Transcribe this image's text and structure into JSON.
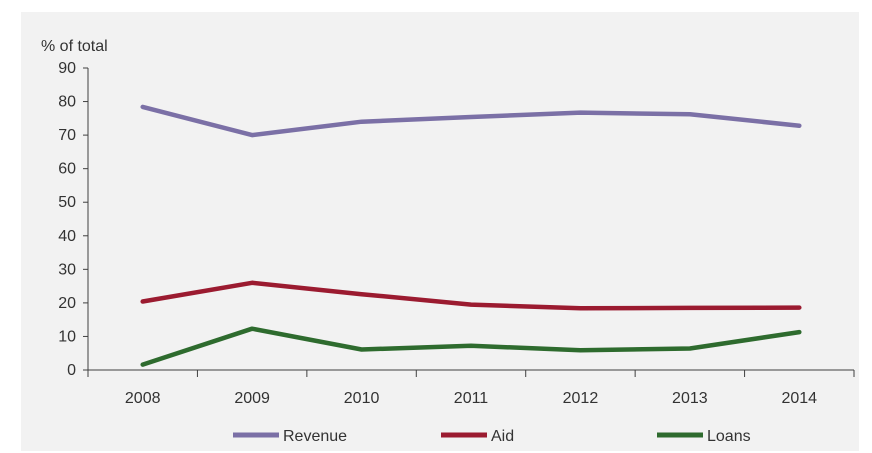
{
  "chart_data": {
    "type": "line",
    "title": "",
    "xlabel": "",
    "ylabel": "% of total",
    "ylim": [
      0,
      90
    ],
    "yticks": [
      0,
      10,
      20,
      30,
      40,
      50,
      60,
      70,
      80,
      90
    ],
    "categories": [
      "2008",
      "2009",
      "2010",
      "2011",
      "2012",
      "2013",
      "2014"
    ],
    "grid": false,
    "legend_position": "bottom",
    "series": [
      {
        "name": "Revenue",
        "color": "#7b70a6",
        "values": [
          78.4,
          70.0,
          74.0,
          75.4,
          76.7,
          76.2,
          72.8
        ]
      },
      {
        "name": "Aid",
        "color": "#9b1b30",
        "values": [
          20.4,
          26.0,
          22.6,
          19.5,
          18.4,
          18.5,
          18.6
        ]
      },
      {
        "name": "Loans",
        "color": "#2e6b2e",
        "values": [
          1.6,
          12.3,
          6.1,
          7.2,
          5.9,
          6.4,
          11.3
        ]
      }
    ]
  }
}
